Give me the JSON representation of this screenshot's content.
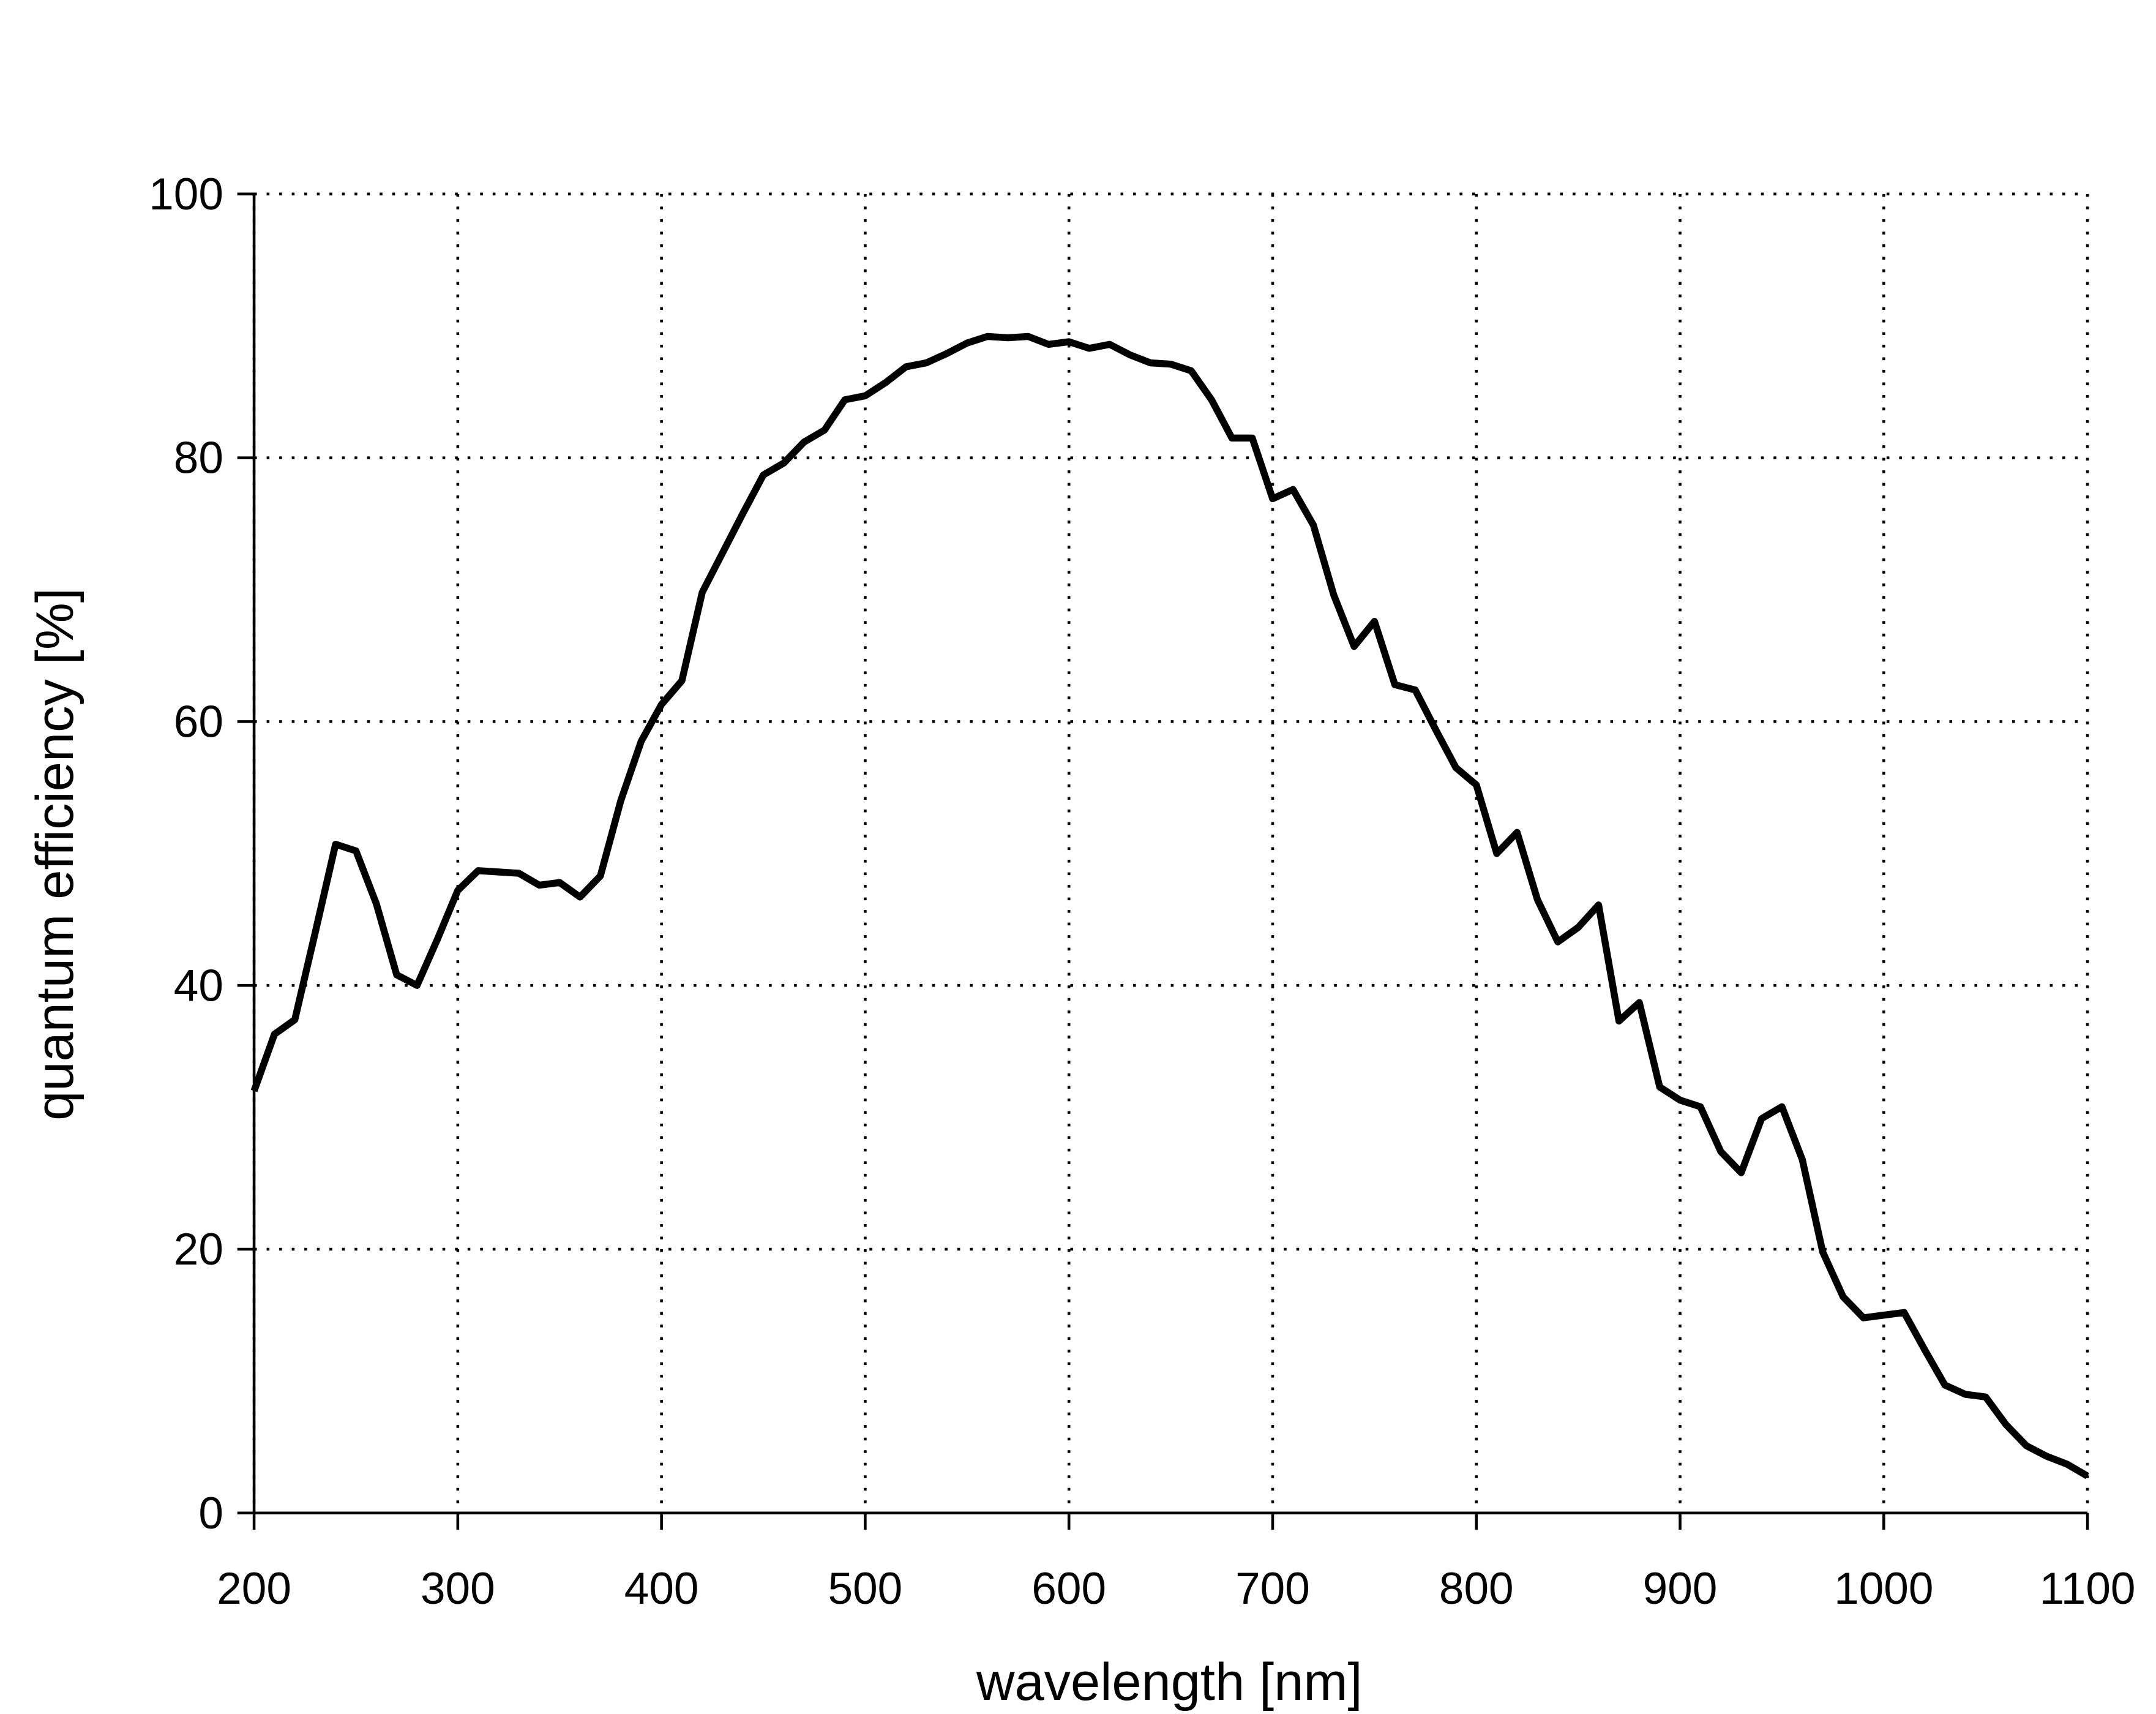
{
  "chart_data": {
    "type": "line",
    "xlabel": "wavelength [nm]",
    "ylabel": "quantum efficiency [%]",
    "x": [
      200,
      210,
      220,
      230,
      240,
      250,
      260,
      270,
      280,
      290,
      300,
      310,
      320,
      330,
      340,
      350,
      360,
      370,
      380,
      390,
      400,
      410,
      420,
      430,
      440,
      450,
      460,
      470,
      480,
      490,
      500,
      510,
      520,
      530,
      540,
      550,
      560,
      570,
      580,
      590,
      600,
      610,
      620,
      630,
      640,
      650,
      660,
      670,
      680,
      690,
      700,
      710,
      720,
      730,
      740,
      750,
      760,
      770,
      780,
      790,
      800,
      810,
      820,
      830,
      840,
      850,
      860,
      870,
      880,
      890,
      900,
      910,
      920,
      930,
      940,
      950,
      960,
      970,
      980,
      990,
      1000,
      1010,
      1020,
      1030,
      1040,
      1050,
      1060,
      1070,
      1080,
      1090,
      1100
    ],
    "series": [
      {
        "color": "#000000",
        "values": [
          32,
          36.3,
          37.4,
          44,
          50.7,
          50.2,
          46.2,
          40.8,
          40.0,
          43.5,
          47.2,
          48.7,
          48.6,
          48.5,
          47.6,
          47.8,
          46.7,
          48.3,
          54,
          58.5,
          61.3,
          63.1,
          69.8,
          72.8,
          75.8,
          78.7,
          79.6,
          81.2,
          82.1,
          84.4,
          84.7,
          85.7,
          86.9,
          87.2,
          87.9,
          88.7,
          89.2,
          89.1,
          89.2,
          88.6,
          88.8,
          88.3,
          88.6,
          87.8,
          87.2,
          87.1,
          86.6,
          84.4,
          81.5,
          81.5,
          76.9,
          77.6,
          74.9,
          69.6,
          65.7,
          67.6,
          62.8,
          62.4,
          59.4,
          56.5,
          55.2,
          50.0,
          51.6,
          46.5,
          43.3,
          44.4,
          46.1,
          37.3,
          38.7,
          32.3,
          31.3,
          30.8,
          27.4,
          25.8,
          29.9,
          30.8,
          26.8,
          19.8,
          16.4,
          14.8,
          15.0,
          15.2,
          12.4,
          9.7,
          9.0,
          8.8,
          6.7,
          5.1,
          4.3,
          3.7,
          2.8
        ]
      }
    ],
    "xlim": [
      200,
      1100
    ],
    "xticks": [
      200,
      300,
      400,
      500,
      600,
      700,
      800,
      900,
      1000,
      1100
    ],
    "ylim": [
      0,
      100
    ],
    "yticks": [
      0,
      20,
      40,
      60,
      80,
      100
    ],
    "grid": true
  }
}
